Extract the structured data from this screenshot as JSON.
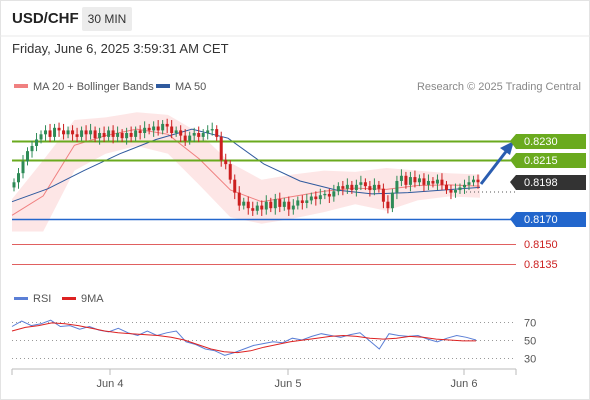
{
  "header": {
    "symbol": "USD/CHF",
    "timeframe": "30 MIN",
    "datetime": "Friday, June 6, 2025 3:59:31 AM CET"
  },
  "legend": {
    "items": [
      {
        "label": "MA 20 + Bollinger Bands",
        "color": "#f08080"
      },
      {
        "label": "MA 50",
        "color": "#2f5a9e"
      }
    ],
    "copyright": "Research © 2025 Trading Central"
  },
  "colors": {
    "candle_up": "#2e8b57",
    "candle_down": "#cc1f1f",
    "band_fill": "#fde2e2",
    "ma20": "#f08080",
    "ma50": "#2f5a9e",
    "resistance": "#6aaa1e",
    "pivot": "#2266cc",
    "support": "#e06060",
    "rsi": "#5b7fd6",
    "rsi_ma": "#dd2222",
    "arrow": "#2a5db0"
  },
  "chart_data": [
    {
      "type": "candlestick",
      "title": "USD/CHF",
      "x_ticks": [
        "Jun 4",
        "Jun 5",
        "Jun 6"
      ],
      "ylim": [
        0.81125,
        0.82695
      ],
      "levels": [
        {
          "value": "0.8230",
          "kind": "resistance"
        },
        {
          "value": "0.8215",
          "kind": "resistance"
        },
        {
          "value": "0.8198",
          "kind": "current"
        },
        {
          "value": "0.8170",
          "kind": "pivot"
        },
        {
          "value": "0.8150",
          "kind": "support"
        },
        {
          "value": "0.8135",
          "kind": "support"
        }
      ],
      "close": [
        0.8198,
        0.8205,
        0.8214,
        0.8222,
        0.8226,
        0.8231,
        0.8235,
        0.8238,
        0.8233,
        0.824,
        0.8238,
        0.8235,
        0.8238,
        0.8235,
        0.8233,
        0.8238,
        0.8235,
        0.8238,
        0.8232,
        0.8236,
        0.8233,
        0.8238,
        0.8233,
        0.8236,
        0.8232,
        0.8236,
        0.8233,
        0.8238,
        0.8236,
        0.824,
        0.8238,
        0.8241,
        0.8238,
        0.8243,
        0.8241,
        0.8236,
        0.8238,
        0.8234,
        0.823,
        0.8234,
        0.8236,
        0.8233,
        0.8236,
        0.8238,
        0.8239,
        0.8233,
        0.8215,
        0.8212,
        0.82,
        0.819,
        0.818,
        0.8183,
        0.8178,
        0.8176,
        0.818,
        0.8177,
        0.8183,
        0.8178,
        0.8185,
        0.8179,
        0.8183,
        0.8177,
        0.818,
        0.8184,
        0.8182,
        0.8184,
        0.8187,
        0.8185,
        0.8188,
        0.8189,
        0.8187,
        0.8191,
        0.8195,
        0.8193,
        0.8196,
        0.8192,
        0.8196,
        0.8198,
        0.8195,
        0.8192,
        0.8196,
        0.8193,
        0.8183,
        0.8178,
        0.819,
        0.8199,
        0.8203,
        0.8196,
        0.8202,
        0.8198,
        0.8201,
        0.8196,
        0.8199,
        0.8197,
        0.82,
        0.8196,
        0.8192,
        0.819,
        0.8192,
        0.8194,
        0.8196,
        0.8198,
        0.82,
        0.8198
      ],
      "ma20_band": {
        "upper": [
          0.8185,
          0.8215,
          0.8246,
          0.8248,
          0.8252,
          0.825,
          0.8236,
          0.8213,
          0.82,
          0.8204,
          0.8207,
          0.8206,
          0.8209,
          0.8207,
          0.8205,
          0.8204
        ],
        "lower": [
          0.816,
          0.816,
          0.8207,
          0.822,
          0.8226,
          0.822,
          0.8196,
          0.8171,
          0.8166,
          0.817,
          0.8175,
          0.8181,
          0.8176,
          0.8184,
          0.8187,
          0.8186
        ]
      },
      "ma50": [
        0.8183,
        0.8193,
        0.8207,
        0.822,
        0.8231,
        0.8239,
        0.8232,
        0.8212,
        0.8199,
        0.8192,
        0.8189,
        0.819,
        0.8192,
        0.8194
      ]
    },
    {
      "type": "line",
      "title": "RSI",
      "series": [
        {
          "name": "RSI",
          "values": [
            65,
            71,
            66,
            68,
            72,
            65,
            66,
            62,
            65,
            61,
            59,
            63,
            58,
            55,
            60,
            55,
            58,
            60,
            48,
            45,
            40,
            38,
            33,
            36,
            40,
            44,
            46,
            48,
            47,
            52,
            50,
            54,
            57,
            55,
            53,
            56,
            58,
            49,
            40,
            57,
            55,
            54,
            55,
            51,
            48,
            52,
            55,
            53,
            50
          ]
        },
        {
          "name": "9MA",
          "values": [
            60,
            64,
            66,
            69,
            68,
            66,
            63,
            60,
            58,
            57,
            56,
            55,
            53,
            50,
            45,
            40,
            37,
            36,
            38,
            42,
            45,
            48,
            50,
            52,
            54,
            55,
            54,
            52,
            51,
            52,
            54,
            53,
            51,
            50,
            49,
            49
          ]
        }
      ],
      "y_ticks": [
        "70",
        "50",
        "30"
      ],
      "ylim": [
        20,
        80
      ]
    }
  ]
}
